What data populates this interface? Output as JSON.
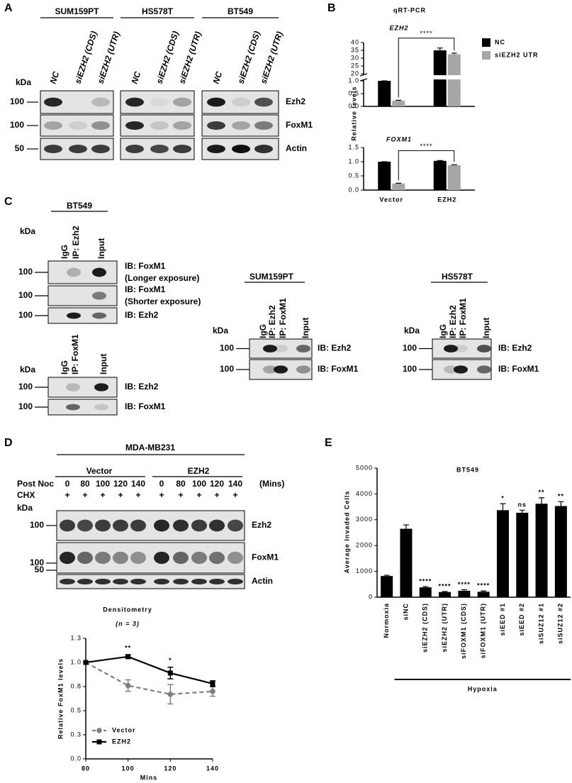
{
  "panel_labels": [
    "A",
    "B",
    "C",
    "D",
    "E"
  ],
  "blot_A": {
    "kda_unit": "kDa",
    "cell_lines": [
      "SUM159PT",
      "HS578T",
      "BT549"
    ],
    "lanes": [
      "NC",
      "siEZH2 (CDS)",
      "siEZH2 (UTR)"
    ],
    "rows": [
      {
        "kda": 100,
        "protein": "Ezh2"
      },
      {
        "kda": 100,
        "protein": "FoxM1"
      },
      {
        "kda": 50,
        "protein": "Actin"
      }
    ]
  },
  "blot_C": {
    "kda_unit": "kDa",
    "groups": [
      {
        "cell_line": "BT549",
        "lanes": [
          "IgG",
          "IP: Ezh2",
          "Input"
        ],
        "rows": [
          {
            "kda": 100,
            "probe": "IB: FoxM1",
            "exposure": "(Longer exposure)"
          },
          {
            "kda": 100,
            "probe": "IB: FoxM1",
            "exposure": "(Shorter exposure)"
          },
          {
            "kda": 100,
            "probe": "IB: Ezh2"
          }
        ]
      },
      {
        "lanes": [
          "IgG",
          "IP: FoxM1",
          "Input"
        ],
        "rows": [
          {
            "kda": 100,
            "probe": "IB: Ezh2"
          },
          {
            "kda": 100,
            "probe": "IB: FoxM1"
          }
        ]
      },
      {
        "cell_line": "SUM159PT",
        "lanes": [
          "IgG",
          "IP: Ezh2",
          "IP: FoxM1",
          "Input"
        ],
        "rows": [
          {
            "kda": 100,
            "probe": "IB: Ezh2"
          },
          {
            "kda": 100,
            "probe": "IB: FoxM1"
          }
        ]
      },
      {
        "cell_line": "HS578T",
        "lanes": [
          "IgG",
          "IP: Ezh2",
          "IP: FoxM1",
          "Input"
        ],
        "rows": [
          {
            "kda": 100,
            "probe": "IB: Ezh2"
          },
          {
            "kda": 100,
            "probe": "IB: FoxM1"
          }
        ]
      }
    ]
  },
  "blot_D": {
    "cell_line": "MDA-MB231",
    "groups": [
      "Vector",
      "EZH2"
    ],
    "row_labels": [
      "Post Noc",
      "CHX"
    ],
    "times": [
      0,
      80,
      100,
      120,
      140,
      0,
      80,
      100,
      120,
      140
    ],
    "time_unit": "(Mins)",
    "chx_mark": "+",
    "kda_unit": "kDa",
    "rows": [
      {
        "kda": 100,
        "protein": "Ezh2"
      },
      {
        "kda": 100,
        "protein": "FoxM1"
      },
      {
        "kda": 50,
        "protein": "Actin"
      }
    ]
  },
  "chart_data": [
    {
      "type": "bar",
      "title": "qRT-PCR",
      "subtitle": "EZH2",
      "y_label": "Relative levels",
      "series": [
        {
          "name": "NC",
          "color": "#000000",
          "values": [
            1.0,
            35
          ],
          "errors": [
            0,
            1.5
          ]
        },
        {
          "name": "siEZH2 UTR",
          "color": "#a6a6a6",
          "values": [
            0.22,
            32.5
          ],
          "errors": [
            0.02,
            0.7
          ]
        }
      ],
      "ylim": [
        0,
        40
      ],
      "y_break": [
        1,
        20
      ],
      "yticks": [
        {
          "value": 0,
          "label": "0.0"
        },
        {
          "value": 0.5,
          "label": "0.5"
        },
        {
          "value": 1,
          "label": "1.0"
        },
        20,
        25,
        30,
        35,
        40
      ],
      "legend": "upper right",
      "annotations": [
        {
          "text": "****"
        }
      ]
    },
    {
      "type": "bar",
      "subtitle": "FOXM1",
      "categories": [
        "Vector",
        "EZH2"
      ],
      "series": [
        {
          "color": "#000000",
          "values": [
            1.0,
            1.03
          ],
          "errors": [
            0,
            0.01
          ]
        },
        {
          "color": "#a6a6a6",
          "values": [
            0.23,
            0.88
          ],
          "errors": [
            0.01,
            0.015
          ]
        }
      ],
      "ylim": [
        0,
        1.5
      ],
      "yticks": [
        {
          "value": 0,
          "label": "0.0"
        },
        {
          "value": 0.5,
          "label": "0.5"
        },
        {
          "value": 1,
          "label": "1.0"
        },
        {
          "value": 1.5,
          "label": "1.5"
        }
      ],
      "annotations": [
        {
          "text": "****"
        }
      ]
    },
    {
      "type": "line",
      "title": "Densitometry",
      "subtitle": "(n = 3)",
      "x_label": "Mins",
      "y_label": "Relative FoxM1 levels",
      "x": [
        80,
        100,
        120,
        140
      ],
      "xlim": [
        80,
        140
      ],
      "xticks": [
        80,
        100,
        120,
        140
      ],
      "ylim": [
        0,
        1.25
      ],
      "yticks": [
        {
          "value": 0,
          "label": "0.0"
        },
        {
          "value": 0.25,
          "label": "0.3"
        },
        {
          "value": 0.5,
          "label": "0.5"
        },
        {
          "value": 0.75,
          "label": "0.8"
        },
        {
          "value": 1.0,
          "label": "1.0"
        },
        {
          "value": 1.25,
          "label": "1.3"
        }
      ],
      "series": [
        {
          "name": "Vector",
          "color": "#7f7f7f",
          "line_style": "dashed",
          "marker": "circle",
          "values": [
            1.0,
            0.76,
            0.67,
            0.7
          ],
          "errors": [
            0,
            0.06,
            0.1,
            0.05
          ]
        },
        {
          "name": "EZH2",
          "color": "#000000",
          "line_style": "solid",
          "marker": "square",
          "values": [
            1.0,
            1.06,
            0.89,
            0.78
          ],
          "errors": [
            0,
            0.02,
            0.06,
            0.03
          ]
        }
      ],
      "legend": "lower left",
      "annotations": [
        {
          "x": 100,
          "text": "**"
        },
        {
          "x": 120,
          "text": "*"
        }
      ]
    },
    {
      "type": "bar",
      "title": "BT549",
      "y_label": "Average Invaded Cells",
      "color": "#000000",
      "categories": [
        "Normoxia",
        "siNC",
        "siEZH2 (CDS)",
        "siEZH2 (UTR)",
        "siFOXM1 (CDS)",
        "siFOXM1 (UTR)",
        "siEED #1",
        "siEED #2",
        "siSUZ12 #1",
        "siSUZ12 #2"
      ],
      "values": [
        820,
        2650,
        380,
        200,
        250,
        210,
        3370,
        3270,
        3620,
        3530
      ],
      "errors": [
        30,
        150,
        30,
        20,
        40,
        30,
        250,
        100,
        230,
        170
      ],
      "annotations": [
        null,
        null,
        "****",
        "****",
        "****",
        "****",
        "*",
        "ns",
        "**",
        "**"
      ],
      "group_label": "Hypoxia",
      "ylim": [
        0,
        5000
      ],
      "yticks": [
        0,
        1000,
        2000,
        3000,
        4000,
        5000
      ]
    }
  ]
}
